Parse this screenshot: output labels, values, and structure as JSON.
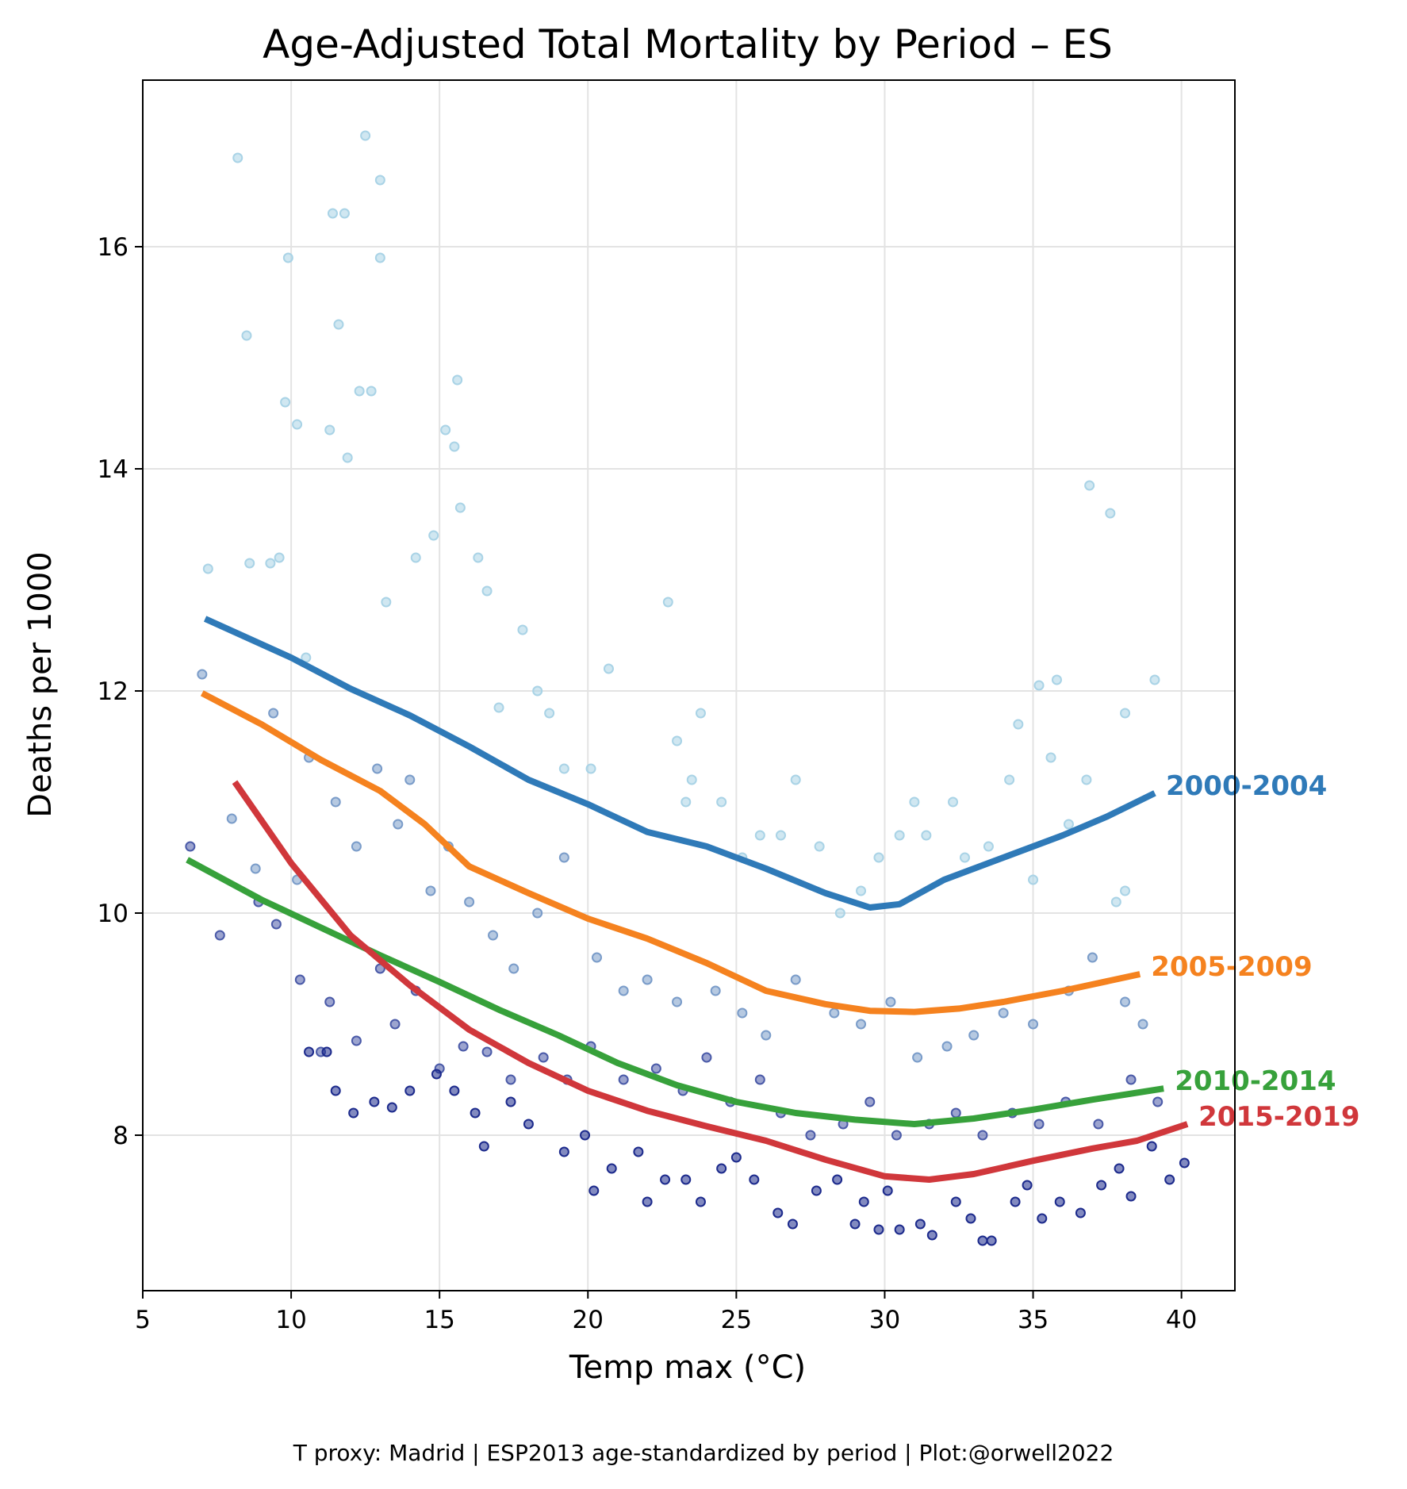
{
  "chart_data": {
    "type": "scatter",
    "title": "Age-Adjusted Total Mortality by Period – ES",
    "xlabel": "Temp max (°C)",
    "ylabel": "Deaths per 1000",
    "xlim": [
      5,
      41.8
    ],
    "ylim": [
      6.6,
      17.5
    ],
    "x_ticks": [
      5,
      10,
      15,
      20,
      25,
      30,
      35,
      40
    ],
    "y_ticks": [
      8,
      10,
      12,
      14,
      16
    ],
    "grid": true,
    "legend": "inline labels at right end of each curve",
    "series": [
      {
        "name": "2000-2004",
        "color": "#2f7ab8",
        "point_color": "#a9d3e6",
        "trend_x": [
          7.1,
          10,
          12,
          14,
          16,
          18,
          20,
          22,
          24,
          26,
          28,
          29.5,
          30.5,
          32,
          34,
          36,
          37.5,
          39.1
        ],
        "trend_y": [
          12.65,
          12.3,
          12.02,
          11.78,
          11.5,
          11.2,
          10.98,
          10.73,
          10.6,
          10.4,
          10.18,
          10.05,
          10.08,
          10.3,
          10.5,
          10.7,
          10.87,
          11.08
        ],
        "points": [
          [
            7.2,
            13.1
          ],
          [
            8.2,
            16.8
          ],
          [
            8.5,
            15.2
          ],
          [
            8.6,
            13.15
          ],
          [
            9.3,
            13.15
          ],
          [
            9.6,
            13.2
          ],
          [
            9.8,
            14.6
          ],
          [
            9.9,
            15.9
          ],
          [
            10.2,
            14.4
          ],
          [
            10.5,
            12.3
          ],
          [
            11.3,
            14.35
          ],
          [
            11.4,
            16.3
          ],
          [
            11.6,
            15.3
          ],
          [
            11.8,
            16.3
          ],
          [
            11.9,
            14.1
          ],
          [
            12.3,
            14.7
          ],
          [
            12.5,
            17.0
          ],
          [
            12.7,
            14.7
          ],
          [
            13.0,
            16.6
          ],
          [
            13.0,
            15.9
          ],
          [
            13.2,
            12.8
          ],
          [
            14.2,
            13.2
          ],
          [
            14.8,
            13.4
          ],
          [
            15.2,
            14.35
          ],
          [
            15.5,
            14.2
          ],
          [
            15.6,
            14.8
          ],
          [
            15.7,
            13.65
          ],
          [
            16.3,
            13.2
          ],
          [
            16.6,
            12.9
          ],
          [
            17.0,
            11.85
          ],
          [
            17.8,
            12.55
          ],
          [
            18.3,
            12.0
          ],
          [
            18.7,
            11.8
          ],
          [
            19.2,
            11.3
          ],
          [
            20.1,
            11.3
          ],
          [
            20.7,
            12.2
          ],
          [
            22.7,
            12.8
          ],
          [
            23.0,
            11.55
          ],
          [
            23.3,
            11.0
          ],
          [
            23.5,
            11.2
          ],
          [
            23.8,
            11.8
          ],
          [
            24.5,
            11.0
          ],
          [
            25.2,
            10.5
          ],
          [
            25.8,
            10.7
          ],
          [
            26.5,
            10.7
          ],
          [
            27.0,
            11.2
          ],
          [
            27.8,
            10.6
          ],
          [
            28.5,
            10.0
          ],
          [
            29.2,
            10.2
          ],
          [
            29.8,
            10.5
          ],
          [
            30.5,
            10.7
          ],
          [
            31.0,
            11.0
          ],
          [
            31.4,
            10.7
          ],
          [
            32.3,
            11.0
          ],
          [
            32.7,
            10.5
          ],
          [
            33.5,
            10.6
          ],
          [
            34.2,
            11.2
          ],
          [
            34.5,
            11.7
          ],
          [
            35.0,
            10.3
          ],
          [
            35.2,
            12.05
          ],
          [
            35.6,
            11.4
          ],
          [
            35.8,
            12.1
          ],
          [
            36.2,
            10.8
          ],
          [
            36.8,
            11.2
          ],
          [
            36.9,
            13.85
          ],
          [
            37.6,
            13.6
          ],
          [
            37.8,
            10.1
          ],
          [
            38.1,
            11.8
          ],
          [
            38.1,
            10.2
          ],
          [
            39.1,
            12.1
          ]
        ]
      },
      {
        "name": "2005-2009",
        "color": "#f5821f",
        "point_color": "#7a9cc9",
        "trend_x": [
          7.0,
          9,
          11,
          13,
          14.5,
          16,
          18,
          20,
          22,
          24,
          26,
          28,
          29.5,
          31,
          32.5,
          34,
          36,
          38.6
        ],
        "trend_y": [
          11.98,
          11.7,
          11.38,
          11.1,
          10.8,
          10.42,
          10.18,
          9.95,
          9.77,
          9.55,
          9.3,
          9.18,
          9.12,
          9.11,
          9.14,
          9.2,
          9.3,
          9.45
        ],
        "points": [
          [
            7.0,
            12.15
          ],
          [
            8.0,
            10.85
          ],
          [
            8.8,
            10.4
          ],
          [
            9.4,
            11.8
          ],
          [
            10.2,
            10.3
          ],
          [
            10.6,
            11.4
          ],
          [
            11.5,
            11.0
          ],
          [
            12.2,
            10.6
          ],
          [
            12.9,
            11.3
          ],
          [
            13.6,
            10.8
          ],
          [
            14.0,
            11.2
          ],
          [
            14.7,
            10.2
          ],
          [
            15.3,
            10.6
          ],
          [
            16.0,
            10.1
          ],
          [
            16.8,
            9.8
          ],
          [
            17.5,
            9.5
          ],
          [
            18.3,
            10.0
          ],
          [
            19.2,
            10.5
          ],
          [
            20.3,
            9.6
          ],
          [
            21.2,
            9.3
          ],
          [
            22.0,
            9.4
          ],
          [
            23.0,
            9.2
          ],
          [
            24.3,
            9.3
          ],
          [
            25.2,
            9.1
          ],
          [
            26.0,
            8.9
          ],
          [
            27.0,
            9.4
          ],
          [
            28.3,
            9.1
          ],
          [
            29.2,
            9.0
          ],
          [
            30.2,
            9.2
          ],
          [
            31.1,
            8.7
          ],
          [
            32.1,
            8.8
          ],
          [
            33.0,
            8.9
          ],
          [
            34.0,
            9.1
          ],
          [
            35.0,
            9.0
          ],
          [
            36.2,
            9.3
          ],
          [
            37.0,
            9.6
          ],
          [
            38.1,
            9.2
          ],
          [
            38.7,
            9.0
          ]
        ]
      },
      {
        "name": "2010-2014",
        "color": "#37a13b",
        "point_color": "#4a5aa8",
        "trend_x": [
          6.5,
          9,
          11,
          13,
          15,
          17,
          19,
          21,
          23,
          25,
          27,
          29,
          31,
          33,
          35,
          37,
          39.4
        ],
        "trend_y": [
          10.48,
          10.12,
          9.87,
          9.62,
          9.38,
          9.13,
          8.9,
          8.65,
          8.45,
          8.3,
          8.2,
          8.14,
          8.1,
          8.15,
          8.23,
          8.32,
          8.42
        ],
        "points": [
          [
            6.6,
            10.6
          ],
          [
            7.6,
            9.8
          ],
          [
            8.9,
            10.1
          ],
          [
            9.5,
            9.9
          ],
          [
            10.3,
            9.4
          ],
          [
            11.0,
            8.75
          ],
          [
            11.3,
            9.2
          ],
          [
            12.2,
            8.85
          ],
          [
            13.0,
            9.5
          ],
          [
            13.5,
            9.0
          ],
          [
            14.2,
            9.3
          ],
          [
            15.0,
            8.6
          ],
          [
            15.8,
            8.8
          ],
          [
            16.6,
            8.75
          ],
          [
            17.4,
            8.5
          ],
          [
            18.5,
            8.7
          ],
          [
            19.3,
            8.5
          ],
          [
            20.1,
            8.8
          ],
          [
            21.2,
            8.5
          ],
          [
            22.3,
            8.6
          ],
          [
            23.2,
            8.4
          ],
          [
            24.0,
            8.7
          ],
          [
            24.8,
            8.3
          ],
          [
            25.8,
            8.5
          ],
          [
            26.5,
            8.2
          ],
          [
            27.5,
            8.0
          ],
          [
            28.6,
            8.1
          ],
          [
            29.5,
            8.3
          ],
          [
            30.4,
            8.0
          ],
          [
            31.5,
            8.1
          ],
          [
            32.4,
            8.2
          ],
          [
            33.3,
            8.0
          ],
          [
            34.3,
            8.2
          ],
          [
            35.2,
            8.1
          ],
          [
            36.1,
            8.3
          ],
          [
            37.2,
            8.1
          ],
          [
            38.3,
            8.5
          ],
          [
            39.2,
            8.3
          ]
        ]
      },
      {
        "name": "2015-2019",
        "color": "#d0373b",
        "point_color": "#1c2a8c",
        "trend_x": [
          8.1,
          10,
          12,
          14,
          16,
          18,
          20,
          22,
          24,
          26,
          28,
          30,
          31.5,
          33,
          35,
          37,
          38.5,
          40.2
        ],
        "trend_y": [
          11.18,
          10.45,
          9.8,
          9.35,
          8.95,
          8.65,
          8.4,
          8.22,
          8.08,
          7.95,
          7.78,
          7.63,
          7.6,
          7.65,
          7.77,
          7.88,
          7.95,
          8.1
        ],
        "points": [
          [
            10.6,
            8.75
          ],
          [
            11.2,
            8.75
          ],
          [
            11.5,
            8.4
          ],
          [
            12.1,
            8.2
          ],
          [
            12.8,
            8.3
          ],
          [
            13.4,
            8.25
          ],
          [
            14.0,
            8.4
          ],
          [
            14.9,
            8.55
          ],
          [
            15.5,
            8.4
          ],
          [
            16.2,
            8.2
          ],
          [
            16.5,
            7.9
          ],
          [
            17.4,
            8.3
          ],
          [
            18.0,
            8.1
          ],
          [
            19.2,
            7.85
          ],
          [
            19.9,
            8.0
          ],
          [
            20.2,
            7.5
          ],
          [
            20.8,
            7.7
          ],
          [
            21.7,
            7.85
          ],
          [
            22.0,
            7.4
          ],
          [
            22.6,
            7.6
          ],
          [
            23.3,
            7.6
          ],
          [
            23.8,
            7.4
          ],
          [
            24.5,
            7.7
          ],
          [
            25.0,
            7.8
          ],
          [
            25.6,
            7.6
          ],
          [
            26.4,
            7.3
          ],
          [
            26.9,
            7.2
          ],
          [
            27.7,
            7.5
          ],
          [
            28.4,
            7.6
          ],
          [
            29.0,
            7.2
          ],
          [
            29.3,
            7.4
          ],
          [
            29.8,
            7.15
          ],
          [
            30.1,
            7.5
          ],
          [
            30.5,
            7.15
          ],
          [
            31.2,
            7.2
          ],
          [
            31.6,
            7.1
          ],
          [
            32.4,
            7.4
          ],
          [
            32.9,
            7.25
          ],
          [
            33.3,
            7.05
          ],
          [
            33.6,
            7.05
          ],
          [
            34.4,
            7.4
          ],
          [
            34.8,
            7.55
          ],
          [
            35.3,
            7.25
          ],
          [
            35.9,
            7.4
          ],
          [
            36.6,
            7.3
          ],
          [
            37.3,
            7.55
          ],
          [
            37.9,
            7.7
          ],
          [
            38.3,
            7.45
          ],
          [
            39.0,
            7.9
          ],
          [
            39.6,
            7.6
          ],
          [
            40.1,
            7.75
          ]
        ]
      }
    ]
  },
  "footer_text": "T proxy: Madrid | ESP2013 age-standardized by period | Plot:@orwell2022"
}
